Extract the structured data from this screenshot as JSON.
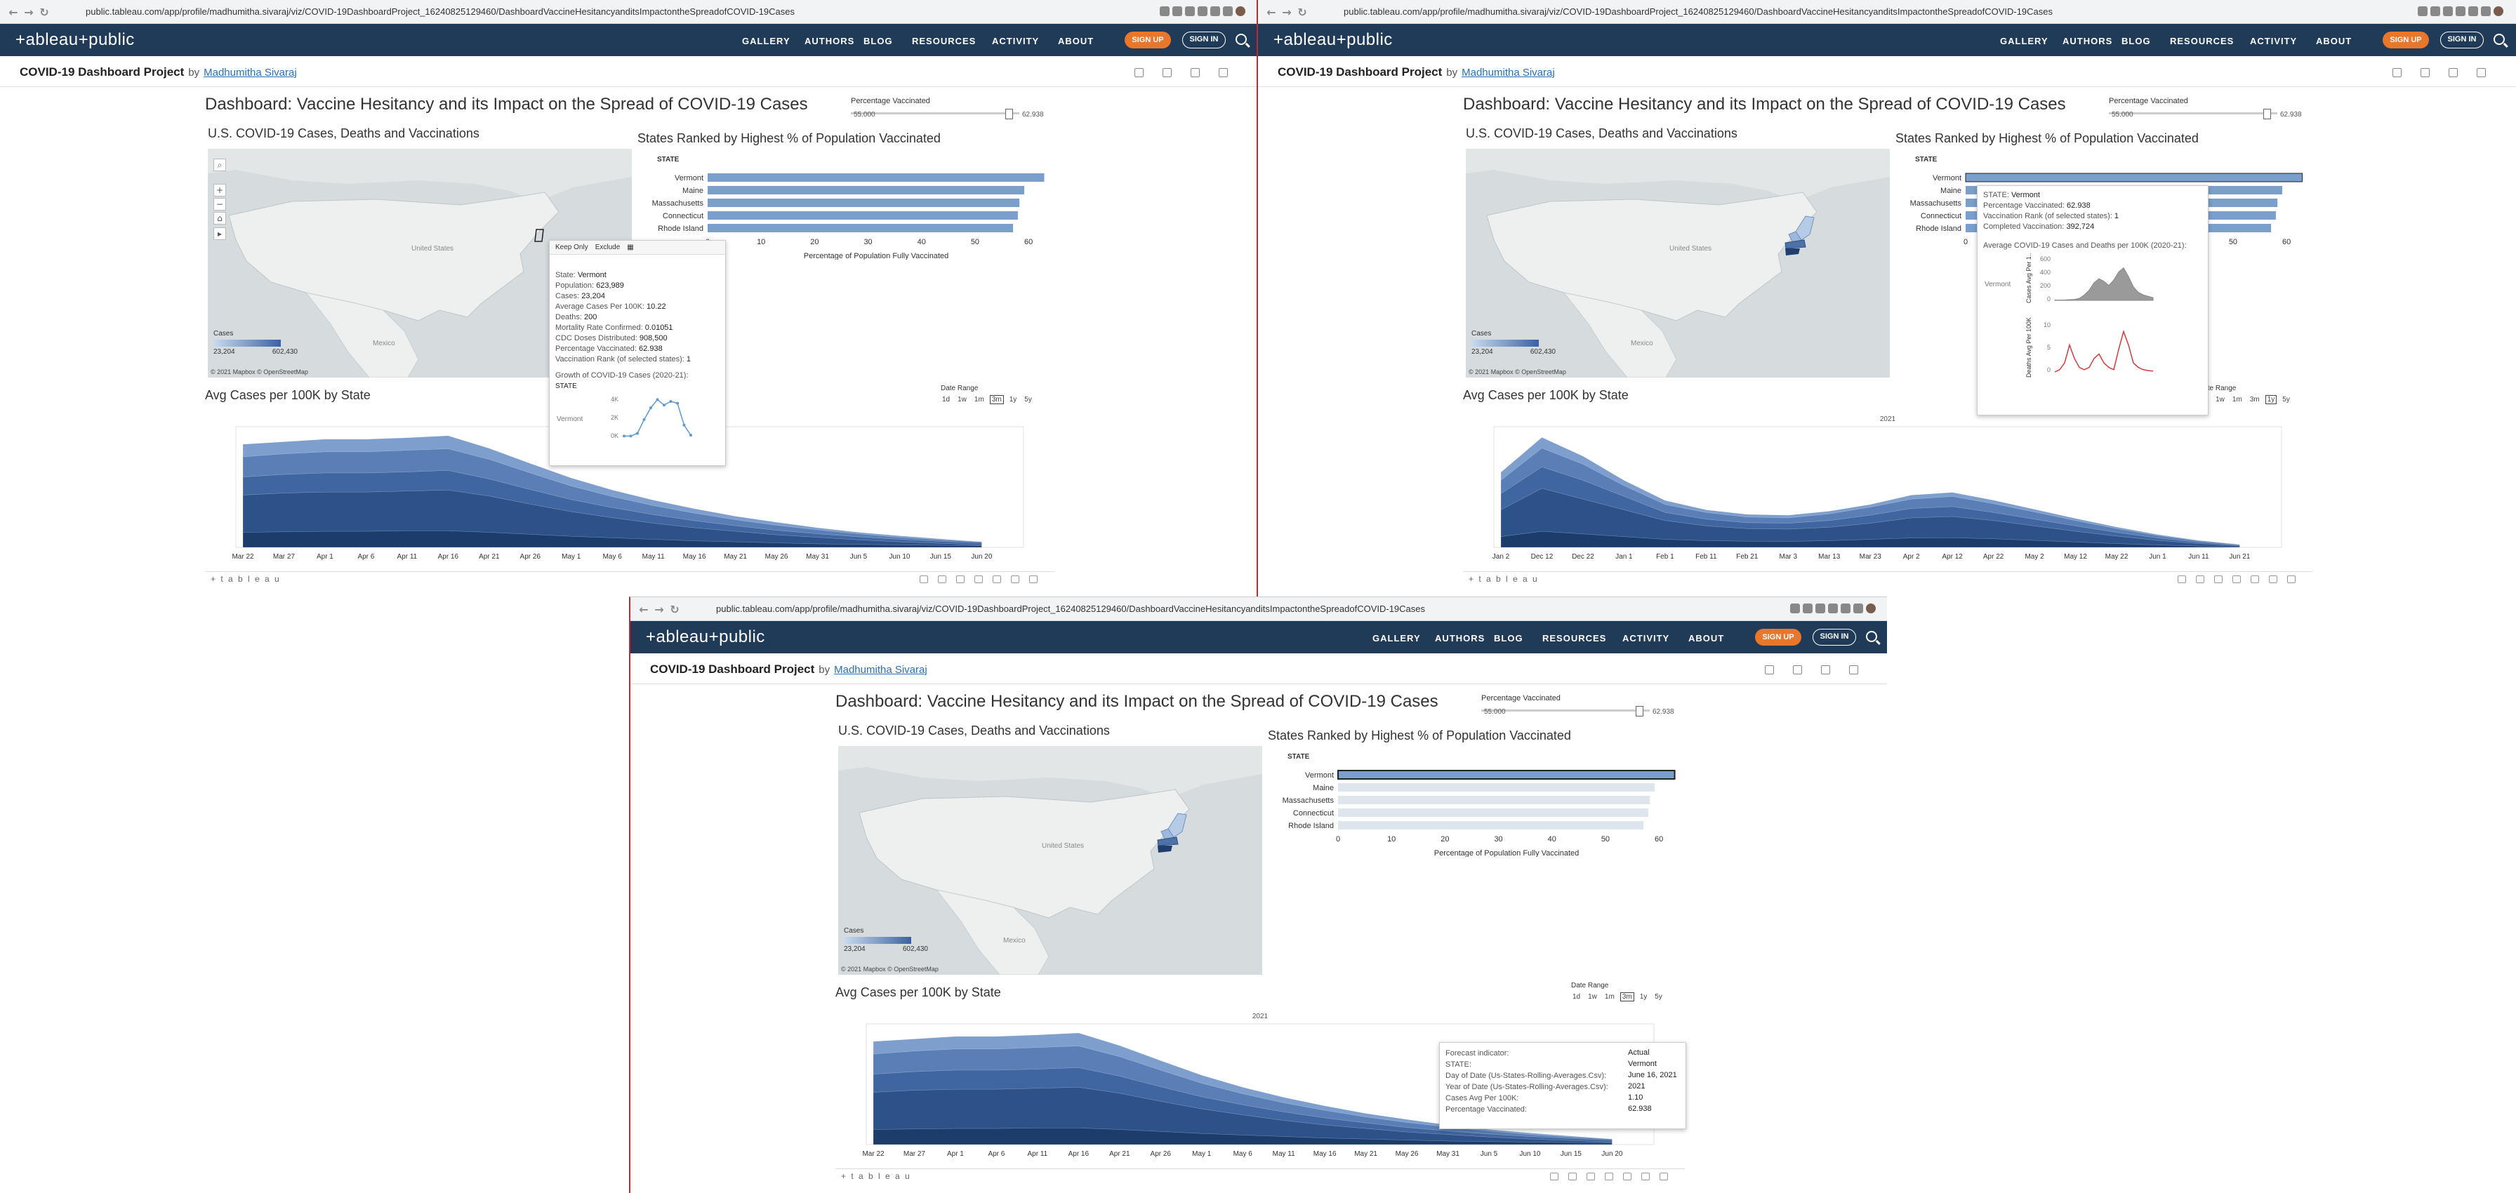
{
  "browser": {
    "url": "public.tableau.com/app/profile/madhumitha.sivaraj/viz/COVID-19DashboardProject_16240825129460/DashboardVaccineHesitancyanditsImpactontheSpreadofCOVID-19Cases"
  },
  "nav": {
    "logo": "+ableau+public",
    "items": [
      "GALLERY",
      "AUTHORS",
      "BLOG",
      "RESOURCES",
      "ACTIVITY",
      "ABOUT"
    ],
    "signup": "SIGN UP",
    "signin": "SIGN IN"
  },
  "viz": {
    "title": "COVID-19 Dashboard Project",
    "by": "by",
    "author": "Madhumitha Sivaraj"
  },
  "dashboard": {
    "title": "Dashboard: Vaccine Hesitancy and its Impact on the Spread of COVID-19 Cases",
    "slider": {
      "label": "Percentage Vaccinated",
      "min": "55.000",
      "max": "62.938",
      "position": 0.92
    },
    "map": {
      "title": "U.S. COVID-19 Cases, Deaths and Vaccinations",
      "legend_title": "Cases",
      "legend_min": "23,204",
      "legend_max": "602,430",
      "copyright": "© 2021 Mapbox  © OpenStreetMap",
      "countries": [
        "United States",
        "Mexico"
      ]
    },
    "bars": {
      "title": "States Ranked by Highest % of Population Vaccinated",
      "header": "STATE",
      "axis_title": "Percentage of Population Fully Vaccinated"
    },
    "area": {
      "title": "Avg Cases per 100K by State",
      "date_range_label": "Date Range",
      "year_label": "2021",
      "range_buttons": [
        "1d",
        "1w",
        "1m",
        "3m",
        "1y",
        "5y"
      ]
    },
    "footer_logo": "+ t a b l e a u"
  },
  "chart_data": [
    {
      "type": "bar",
      "title": "States Ranked by Highest % of Population Vaccinated",
      "categories": [
        "Vermont",
        "Maine",
        "Massachusetts",
        "Connecticut",
        "Rhode Island"
      ],
      "values": [
        62.938,
        59.2,
        58.3,
        58.0,
        57.1
      ],
      "xlabel": "Percentage of Population Fully Vaccinated",
      "xlim": [
        0,
        63
      ],
      "xticks": [
        0,
        10,
        20,
        30,
        40,
        50,
        60
      ],
      "ylabel": "STATE"
    },
    {
      "type": "area",
      "title": "Avg Cases per 100K by State (3m range)",
      "x": [
        "Mar 22",
        "Mar 27",
        "Apr 1",
        "Apr 6",
        "Apr 11",
        "Apr 16",
        "Apr 21",
        "Apr 26",
        "May 1",
        "May 6",
        "May 11",
        "May 16",
        "May 21",
        "May 26",
        "May 31",
        "Jun 5",
        "Jun 10",
        "Jun 15",
        "Jun 20"
      ],
      "series": [
        {
          "values": [
            3.0,
            3.1,
            3.2,
            3.2,
            3.3,
            3.3,
            3.0,
            2.6,
            2.2,
            1.9,
            1.6,
            1.3,
            1.1,
            0.9,
            0.7,
            0.6,
            0.5,
            0.4,
            0.3
          ]
        },
        {
          "values": [
            10.4,
            10.8,
            11.0,
            11.0,
            11.2,
            11.4,
            10.2,
            8.6,
            7.1,
            5.9,
            4.8,
            3.9,
            3.2,
            2.5,
            2.0,
            1.5,
            1.1,
            0.8,
            0.5
          ]
        },
        {
          "values": [
            14.0,
            14.5,
            14.8,
            14.8,
            15.0,
            15.3,
            13.6,
            11.5,
            9.5,
            7.9,
            6.5,
            5.3,
            4.3,
            3.4,
            2.7,
            2.1,
            1.6,
            1.2,
            0.9
          ]
        },
        {
          "values": [
            18.0,
            18.6,
            19.0,
            19.0,
            19.3,
            19.6,
            17.5,
            14.8,
            12.2,
            10.1,
            8.3,
            6.8,
            5.5,
            4.4,
            3.5,
            2.7,
            2.0,
            1.5,
            1.1
          ]
        },
        {
          "values": [
            20.5,
            21.0,
            21.5,
            21.5,
            21.8,
            22.2,
            19.7,
            16.7,
            13.8,
            11.4,
            9.4,
            7.7,
            6.2,
            5.0,
            3.9,
            3.0,
            2.3,
            1.7,
            1.1
          ]
        }
      ]
    },
    {
      "type": "area",
      "title": "Avg Cases per 100K by State (1y range)",
      "x": [
        "Jan 2",
        "Dec 12",
        "Dec 22",
        "Jan 1",
        "Feb 1",
        "Feb 11",
        "Feb 21",
        "Mar 3",
        "Mar 13",
        "Mar 23",
        "Apr 2",
        "Apr 12",
        "Apr 22",
        "May 2",
        "May 12",
        "May 22",
        "Jun 1",
        "Jun 11",
        "Jun 21"
      ],
      "series": [
        {
          "values": [
            4,
            6,
            5,
            4,
            3,
            2.5,
            2.3,
            2.2,
            2.5,
            3.0,
            3.5,
            3.6,
            3.2,
            2.6,
            2.0,
            1.4,
            0.9,
            0.5,
            0.2
          ]
        },
        {
          "values": [
            14,
            22,
            18,
            14,
            10,
            8,
            7,
            6.8,
            7.5,
            9,
            11,
            11.5,
            10,
            8,
            6,
            4.2,
            2.6,
            1.4,
            0.6
          ]
        },
        {
          "values": [
            20,
            30,
            25,
            19,
            13,
            10.5,
            9.2,
            9.0,
            10,
            12,
            14.5,
            15.2,
            13,
            10.5,
            8,
            5.6,
            3.5,
            1.9,
            0.8
          ]
        },
        {
          "values": [
            25,
            37,
            31,
            23,
            16,
            13,
            11.3,
            11,
            12.5,
            15,
            18,
            19,
            16.3,
            13.2,
            10,
            7,
            4.4,
            2.4,
            1.0
          ]
        },
        {
          "values": [
            28,
            41,
            34,
            25,
            17.5,
            14,
            12.3,
            12,
            13.5,
            16,
            19.5,
            20.5,
            17.6,
            14.2,
            10.8,
            7.6,
            4.8,
            2.6,
            1.1
          ]
        }
      ]
    }
  ],
  "tooltips": {
    "p1": {
      "keep": "Keep Only",
      "exclude": "Exclude",
      "rows": [
        [
          "State:",
          "Vermont"
        ],
        [
          "Population:",
          "623,989"
        ],
        [
          "Cases:",
          "23,204"
        ],
        [
          "Average Cases Per 100K:",
          "10.22"
        ],
        [
          "Deaths:",
          "200"
        ],
        [
          "Mortality Rate Confirmed:",
          "0.01051"
        ],
        [
          "CDC Doses Distributed:",
          "908,500"
        ],
        [
          "Percentage Vaccinated:",
          "62.938"
        ],
        [
          "Vaccination Rank (of selected states):",
          "1"
        ]
      ],
      "growth_title": "Growth of COVID-19 Cases (2020-21):",
      "growth_state_header": "STATE",
      "growth_state": "Vermont",
      "growth_ticks": [
        "4K",
        "2K",
        "0K"
      ],
      "growth_values": [
        0.2,
        0.2,
        0.5,
        2.0,
        3.3,
        4.2,
        3.6,
        4.0,
        3.8,
        1.4,
        0.3
      ]
    },
    "p2": {
      "rows": [
        [
          "STATE:",
          "Vermont"
        ],
        [
          "Percentage Vaccinated:",
          "62.938"
        ],
        [
          "Vaccination Rank (of selected states):",
          "1"
        ],
        [
          "Completed Vaccination:",
          "392,724"
        ]
      ],
      "avg_title": "Average COVID-19 Cases and Deaths per 100K (2020-21):",
      "state": "Vermont",
      "cases_axis": "Cases Avg Per 1..",
      "deaths_axis": "Deaths Avg Per 100K",
      "cases_ticks": [
        "600",
        "400",
        "200",
        "0"
      ],
      "deaths_ticks": [
        "10",
        "5",
        "0"
      ],
      "cases_values": [
        5,
        4,
        6,
        10,
        14,
        30,
        80,
        150,
        260,
        320,
        280,
        220,
        300,
        420,
        480,
        350,
        200,
        120,
        80,
        60,
        40
      ],
      "deaths_values": [
        0,
        0.5,
        2,
        6,
        3,
        1,
        0.5,
        1,
        3,
        4,
        2,
        1,
        0.5,
        5,
        9,
        6,
        2,
        1,
        0.5,
        0.3,
        0.2
      ]
    },
    "p3": {
      "rows": [
        [
          "Forecast indicator:",
          "Actual"
        ],
        [
          "STATE:",
          "Vermont"
        ],
        [
          "Day of Date (Us-States-Rolling-Averages.Csv):",
          "June 16, 2021"
        ],
        [
          "Year of Date (Us-States-Rolling-Averages.Csv):",
          "2021"
        ],
        [
          "Cases Avg Per 100K:",
          "1.10"
        ],
        [
          "Percentage Vaccinated:",
          "62.938"
        ]
      ]
    }
  },
  "colors": {
    "nav_bg": "#1f3b58",
    "signup": "#e8762b",
    "bar": "#7b9fcd",
    "bar_dim": "#dfe5ed",
    "area_dark": "#1c3d6c",
    "area_light": "#8aa9d3",
    "tooltip_line": "#5b9bd5",
    "deaths_line": "#d33b3b"
  }
}
